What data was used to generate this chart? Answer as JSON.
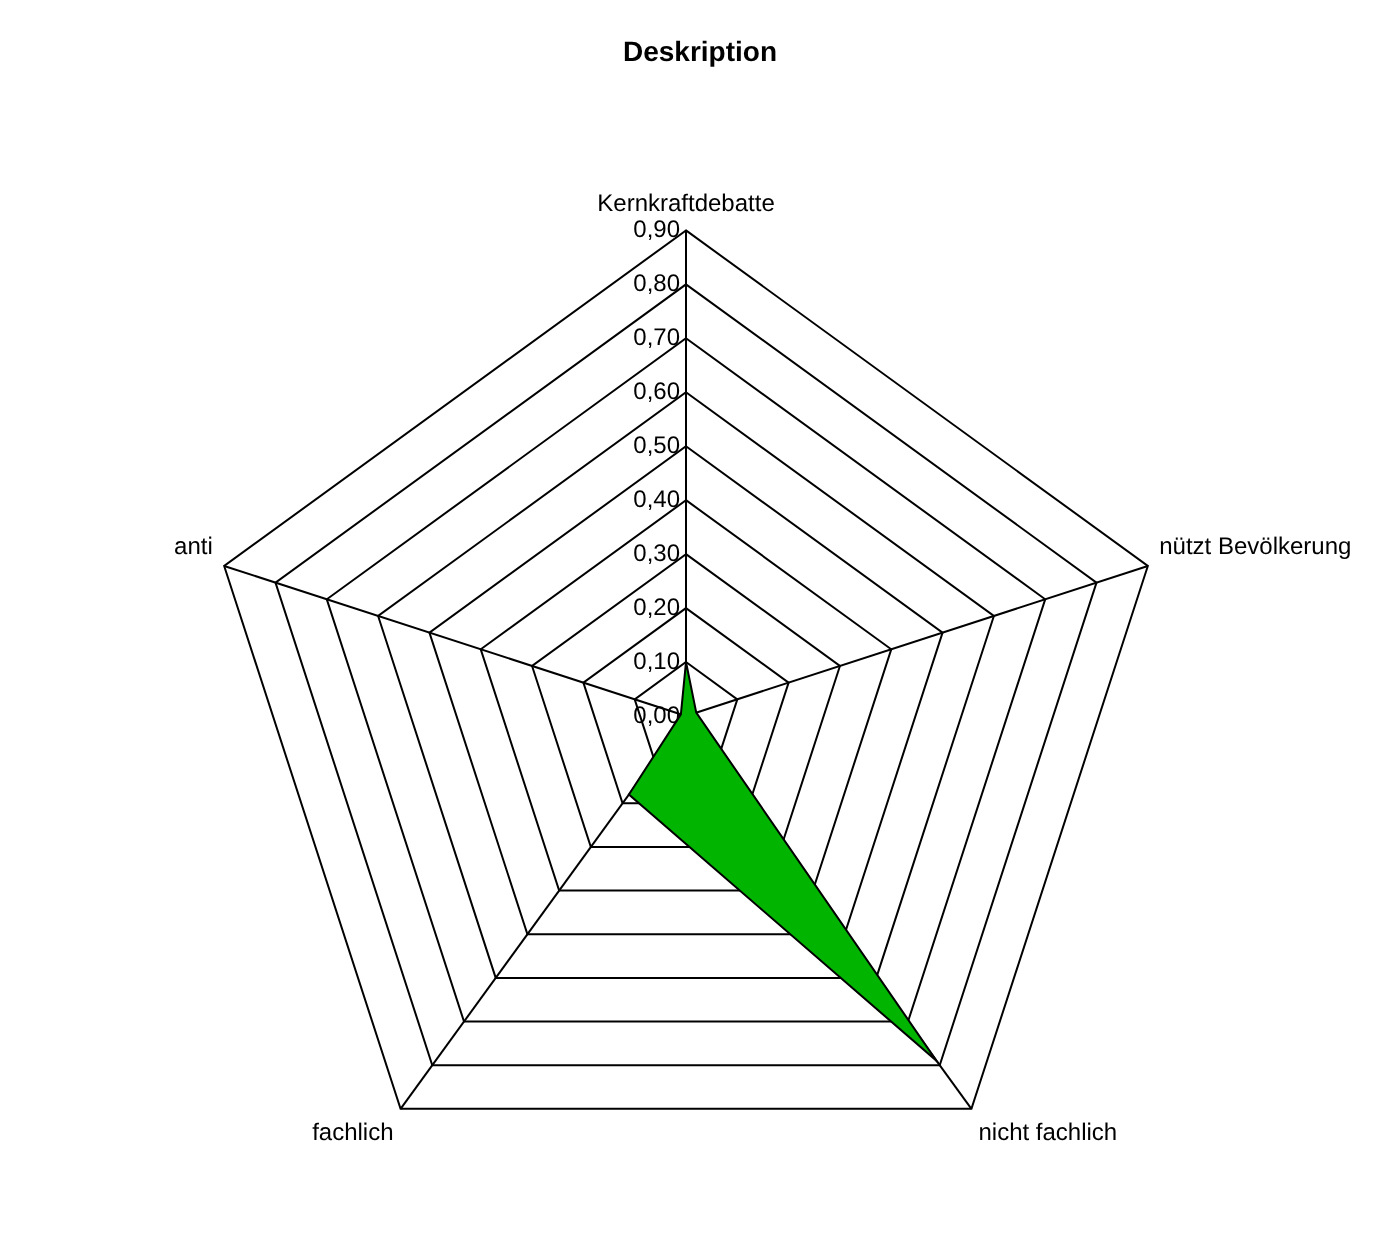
{
  "chart_data": {
    "type": "radar",
    "title": "Deskription",
    "categories": [
      "Kernkraftdebatte",
      "nützt Bevölkerung",
      "nicht fachlich",
      "fachlich",
      "anti"
    ],
    "series": [
      {
        "color": "#00b400",
        "values": [
          0.1,
          0.02,
          0.79,
          0.18,
          0.01
        ]
      }
    ],
    "ylim": [
      0,
      0.9
    ],
    "yticks": [
      {
        "value": 0,
        "label": "0,00"
      },
      {
        "value": 0.1,
        "label": "0,10"
      },
      {
        "value": 0.2,
        "label": "0,20"
      },
      {
        "value": 0.3,
        "label": "0,30"
      },
      {
        "value": 0.4,
        "label": "0,40"
      },
      {
        "value": 0.5,
        "label": "0,50"
      },
      {
        "value": 0.6,
        "label": "0,60"
      },
      {
        "value": 0.7,
        "label": "0,70"
      },
      {
        "value": 0.8,
        "label": "0,80"
      },
      {
        "value": 0.9,
        "label": "0,90"
      }
    ],
    "grid": true,
    "legend": false
  }
}
